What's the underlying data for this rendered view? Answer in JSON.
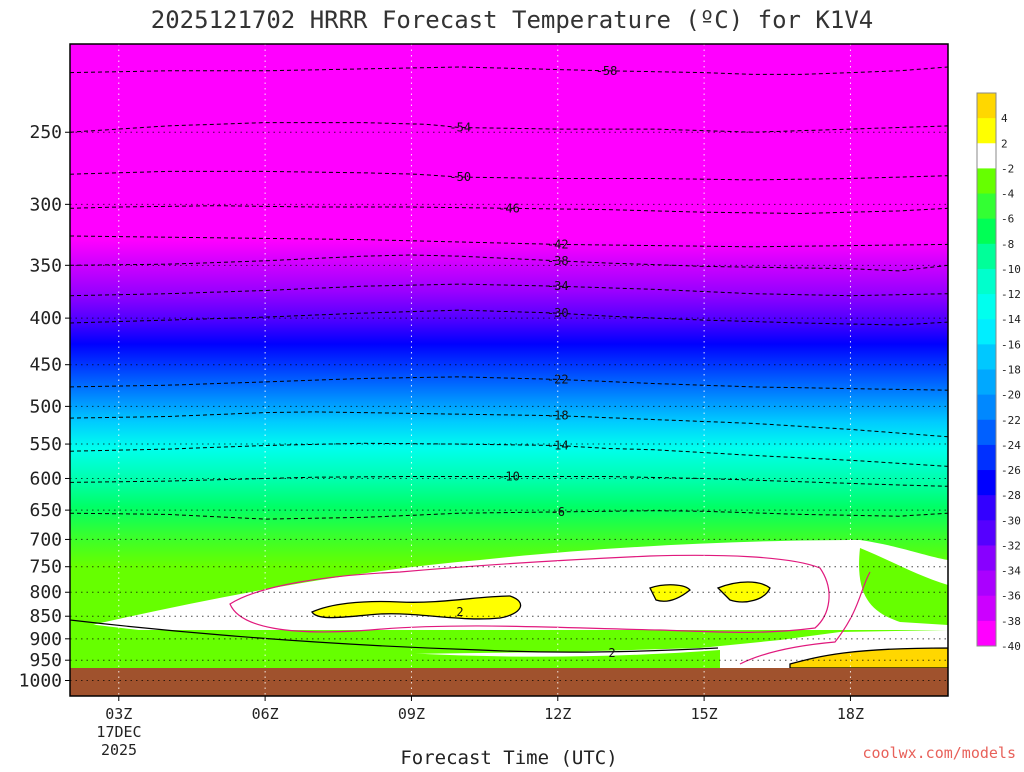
{
  "chart_data": {
    "type": "contour",
    "title": "2025121702 HRRR Forecast Temperature (ºC) for K1V4",
    "xlabel": "Forecast Time (UTC)",
    "ylabel": "",
    "credit": "coolwx.com/models",
    "x_ticks": [
      "03Z",
      "06Z",
      "09Z",
      "12Z",
      "15Z",
      "18Z"
    ],
    "x_tick_hours": [
      3,
      6,
      9,
      12,
      15,
      18
    ],
    "x_range_hours": [
      2,
      20
    ],
    "x_date_label": [
      "17DEC",
      "2025"
    ],
    "y_ticks": [
      "250",
      "300",
      "350",
      "400",
      "450",
      "500",
      "550",
      "600",
      "650",
      "700",
      "750",
      "800",
      "850",
      "900",
      "950",
      "1000"
    ],
    "y_tick_values": [
      250,
      300,
      350,
      400,
      450,
      500,
      550,
      600,
      650,
      700,
      750,
      800,
      850,
      900,
      950,
      1000
    ],
    "y_range": [
      200,
      1040
    ],
    "y_scale": "log",
    "grid": true,
    "colorbar_ticks": [
      "4",
      "2",
      "-2",
      "-4",
      "-6",
      "-8",
      "-10",
      "-12",
      "-14",
      "-16",
      "-18",
      "-20",
      "-22",
      "-24",
      "-26",
      "-28",
      "-30",
      "-32",
      "-34",
      "-36",
      "-38",
      "-40"
    ],
    "colorbar_values": [
      4,
      2,
      -2,
      -4,
      -6,
      -8,
      -10,
      -12,
      -14,
      -16,
      -18,
      -20,
      -22,
      -24,
      -26,
      -28,
      -30,
      -32,
      -34,
      -36,
      -38,
      -40
    ],
    "colorbar_colors": [
      "#ffd700",
      "#ffff00",
      "#ffffff",
      "#66ff00",
      "#33ff33",
      "#00ff55",
      "#00ff99",
      "#00ffcc",
      "#00ffee",
      "#00eeff",
      "#00c8ff",
      "#00a8ff",
      "#0088ff",
      "#0060ff",
      "#0030ff",
      "#0000ff",
      "#3300ff",
      "#5500ff",
      "#8800ff",
      "#aa00ff",
      "#cc00ff",
      "#ff00ff"
    ],
    "contours": [
      {
        "value": -58,
        "label": "-58",
        "points": [
          [
            2,
            215
          ],
          [
            4,
            214
          ],
          [
            6,
            214
          ],
          [
            8,
            213
          ],
          [
            10,
            212
          ],
          [
            11.5,
            213
          ],
          [
            13,
            214
          ],
          [
            15,
            215
          ],
          [
            16,
            216
          ],
          [
            17,
            216
          ],
          [
            19,
            214
          ],
          [
            20,
            212
          ]
        ]
      },
      {
        "value": -54,
        "label": "-54",
        "points": [
          [
            2,
            250
          ],
          [
            4,
            246
          ],
          [
            6,
            244
          ],
          [
            8,
            244
          ],
          [
            9.3,
            245
          ],
          [
            10,
            247
          ],
          [
            12,
            248
          ],
          [
            14,
            248
          ],
          [
            16,
            250
          ],
          [
            18,
            248
          ],
          [
            20,
            246
          ]
        ]
      },
      {
        "value": -50,
        "label": "-50",
        "points": [
          [
            2,
            278
          ],
          [
            4,
            276
          ],
          [
            6,
            276
          ],
          [
            8,
            277
          ],
          [
            9.1,
            278
          ],
          [
            10,
            280
          ],
          [
            12,
            281
          ],
          [
            14,
            281
          ],
          [
            16,
            282
          ],
          [
            18,
            281
          ],
          [
            20,
            279
          ]
        ]
      },
      {
        "value": -46,
        "label": "-46",
        "points": [
          [
            2,
            303
          ],
          [
            3,
            302
          ],
          [
            5,
            301
          ],
          [
            7,
            302
          ],
          [
            9,
            302
          ],
          [
            11,
            303
          ],
          [
            13,
            304
          ],
          [
            15,
            306
          ],
          [
            17,
            307
          ],
          [
            19,
            305
          ],
          [
            20,
            303
          ]
        ]
      },
      {
        "value": -42,
        "label": "-42",
        "points": [
          [
            2,
            325
          ],
          [
            4,
            326
          ],
          [
            6,
            327
          ],
          [
            8,
            328
          ],
          [
            10,
            330
          ],
          [
            12,
            332
          ],
          [
            14,
            333
          ],
          [
            16,
            334
          ],
          [
            18,
            333
          ],
          [
            20,
            332
          ]
        ]
      },
      {
        "value": -38,
        "label": "-38",
        "points": [
          [
            2,
            350
          ],
          [
            4,
            349
          ],
          [
            6,
            346
          ],
          [
            8,
            342
          ],
          [
            9,
            341
          ],
          [
            10,
            342
          ],
          [
            12,
            346
          ],
          [
            13,
            348
          ],
          [
            15,
            351
          ],
          [
            18,
            353
          ],
          [
            19,
            355
          ],
          [
            20,
            350
          ]
        ]
      },
      {
        "value": -34,
        "label": "-34",
        "points": [
          [
            2,
            378
          ],
          [
            4,
            376
          ],
          [
            6,
            373
          ],
          [
            8,
            369
          ],
          [
            10,
            367
          ],
          [
            12,
            369
          ],
          [
            14,
            372
          ],
          [
            16,
            376
          ],
          [
            18,
            378
          ],
          [
            20,
            376
          ]
        ]
      },
      {
        "value": -30,
        "label": "-30",
        "points": [
          [
            2,
            405
          ],
          [
            4,
            402
          ],
          [
            6,
            399
          ],
          [
            8,
            395
          ],
          [
            10,
            392
          ],
          [
            12,
            395
          ],
          [
            13,
            398
          ],
          [
            15,
            402
          ],
          [
            17,
            405
          ],
          [
            19,
            407
          ],
          [
            20,
            404
          ]
        ]
      },
      {
        "value": -22,
        "label": "-22",
        "points": [
          [
            2,
            476
          ],
          [
            4,
            474
          ],
          [
            6,
            470
          ],
          [
            8,
            466
          ],
          [
            10,
            464
          ],
          [
            12,
            467
          ],
          [
            14,
            472
          ],
          [
            16,
            476
          ],
          [
            18,
            478
          ],
          [
            20,
            480
          ]
        ]
      },
      {
        "value": -18,
        "label": "-18",
        "points": [
          [
            2,
            515
          ],
          [
            4,
            513
          ],
          [
            6,
            508
          ],
          [
            7,
            507
          ],
          [
            8,
            508
          ],
          [
            10,
            510
          ],
          [
            12,
            512
          ],
          [
            14,
            517
          ],
          [
            16,
            522
          ],
          [
            18,
            530
          ],
          [
            19,
            535
          ],
          [
            20,
            540
          ]
        ]
      },
      {
        "value": -14,
        "label": "-14",
        "points": [
          [
            2,
            560
          ],
          [
            4,
            557
          ],
          [
            6,
            552
          ],
          [
            8,
            549
          ],
          [
            10,
            550
          ],
          [
            12,
            552
          ],
          [
            13,
            556
          ],
          [
            14,
            558
          ],
          [
            16,
            566
          ],
          [
            18,
            573
          ],
          [
            20,
            582
          ]
        ]
      },
      {
        "value": -10,
        "label": "-10",
        "points": [
          [
            2,
            606
          ],
          [
            4,
            604
          ],
          [
            6,
            600
          ],
          [
            7,
            598
          ],
          [
            9,
            597
          ],
          [
            11,
            597
          ],
          [
            13,
            597
          ],
          [
            15,
            600
          ],
          [
            17,
            605
          ],
          [
            19,
            610
          ],
          [
            20,
            612
          ]
        ]
      },
      {
        "value": -6,
        "label": "-6",
        "points": [
          [
            2,
            655
          ],
          [
            4,
            657
          ],
          [
            6,
            665
          ],
          [
            8,
            662
          ],
          [
            10,
            655
          ],
          [
            12,
            653
          ],
          [
            14,
            651
          ],
          [
            15,
            652
          ],
          [
            17,
            657
          ],
          [
            19,
            660
          ],
          [
            20,
            655
          ]
        ]
      }
    ],
    "freezing_contour_label": "2",
    "surface_label": ""
  }
}
